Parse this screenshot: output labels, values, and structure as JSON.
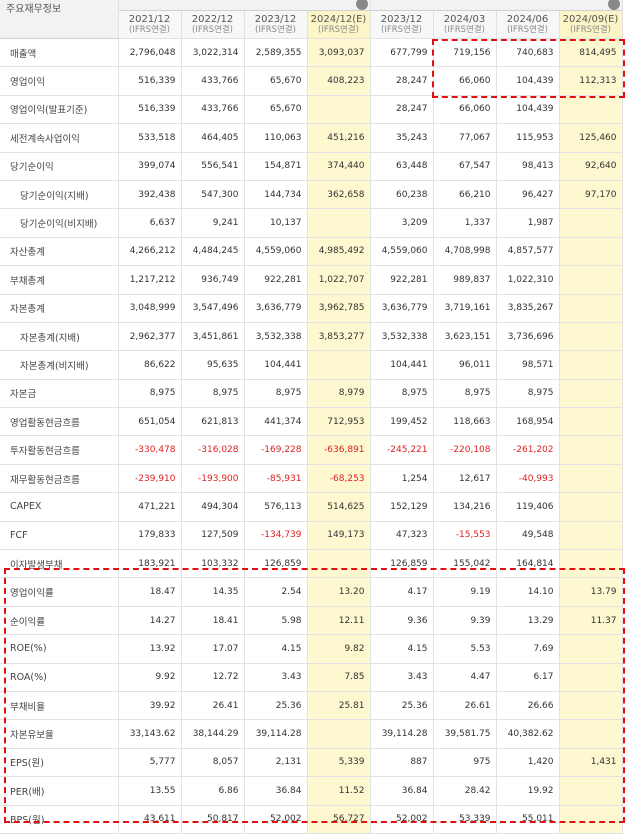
{
  "header": {
    "corner": "주요재무정보",
    "columns": [
      {
        "period": "2021/12",
        "basis": "(IFRS연결)"
      },
      {
        "period": "2022/12",
        "basis": "(IFRS연결)"
      },
      {
        "period": "2023/12",
        "basis": "(IFRS연결)"
      },
      {
        "period": "2024/12(E)",
        "basis": "(IFRS연결)"
      },
      {
        "period": "2023/12",
        "basis": "(IFRS연결)"
      },
      {
        "period": "2024/03",
        "basis": "(IFRS연결)"
      },
      {
        "period": "2024/06",
        "basis": "(IFRS연결)"
      },
      {
        "period": "2024/09(E)",
        "basis": "(IFRS연결)"
      }
    ]
  },
  "rows": [
    {
      "label": "매출액",
      "values": [
        "2,796,048",
        "3,022,314",
        "2,589,355",
        "3,093,037",
        "677,799",
        "719,156",
        "740,683",
        "814,495"
      ]
    },
    {
      "label": "영업이익",
      "values": [
        "516,339",
        "433,766",
        "65,670",
        "408,223",
        "28,247",
        "66,060",
        "104,439",
        "112,313"
      ]
    },
    {
      "label": "영업이익(발표기준)",
      "values": [
        "516,339",
        "433,766",
        "65,670",
        "",
        "28,247",
        "66,060",
        "104,439",
        ""
      ]
    },
    {
      "label": "세전계속사업이익",
      "values": [
        "533,518",
        "464,405",
        "110,063",
        "451,216",
        "35,243",
        "77,067",
        "115,953",
        "125,460"
      ]
    },
    {
      "label": "당기순이익",
      "values": [
        "399,074",
        "556,541",
        "154,871",
        "374,440",
        "63,448",
        "67,547",
        "98,413",
        "92,640"
      ]
    },
    {
      "label": "당기순이익(지배)",
      "values": [
        "392,438",
        "547,300",
        "144,734",
        "362,658",
        "60,238",
        "66,210",
        "96,427",
        "97,170"
      ]
    },
    {
      "label": "당기순이익(비지배)",
      "values": [
        "6,637",
        "9,241",
        "10,137",
        "",
        "3,209",
        "1,337",
        "1,987",
        ""
      ]
    },
    {
      "label": "자산총계",
      "values": [
        "4,266,212",
        "4,484,245",
        "4,559,060",
        "4,985,492",
        "4,559,060",
        "4,708,998",
        "4,857,577",
        ""
      ]
    },
    {
      "label": "부채총계",
      "values": [
        "1,217,212",
        "936,749",
        "922,281",
        "1,022,707",
        "922,281",
        "989,837",
        "1,022,310",
        ""
      ]
    },
    {
      "label": "자본총계",
      "values": [
        "3,048,999",
        "3,547,496",
        "3,636,779",
        "3,962,785",
        "3,636,779",
        "3,719,161",
        "3,835,267",
        ""
      ]
    },
    {
      "label": "자본총계(지배)",
      "values": [
        "2,962,377",
        "3,451,861",
        "3,532,338",
        "3,853,277",
        "3,532,338",
        "3,623,151",
        "3,736,696",
        ""
      ]
    },
    {
      "label": "자본총계(비지배)",
      "values": [
        "86,622",
        "95,635",
        "104,441",
        "",
        "104,441",
        "96,011",
        "98,571",
        ""
      ]
    },
    {
      "label": "자본금",
      "values": [
        "8,975",
        "8,975",
        "8,975",
        "8,979",
        "8,975",
        "8,975",
        "8,975",
        ""
      ]
    },
    {
      "label": "영업활동현금흐름",
      "values": [
        "651,054",
        "621,813",
        "441,374",
        "712,953",
        "199,452",
        "118,663",
        "168,954",
        ""
      ]
    },
    {
      "label": "투자활동현금흐름",
      "values": [
        "-330,478",
        "-316,028",
        "-169,228",
        "-636,891",
        "-245,221",
        "-220,108",
        "-261,202",
        ""
      ]
    },
    {
      "label": "재무활동현금흐름",
      "values": [
        "-239,910",
        "-193,900",
        "-85,931",
        "-68,253",
        "1,254",
        "12,617",
        "-40,993",
        ""
      ]
    },
    {
      "label": "CAPEX",
      "values": [
        "471,221",
        "494,304",
        "576,113",
        "514,625",
        "152,129",
        "134,216",
        "119,406",
        ""
      ]
    },
    {
      "label": "FCF",
      "values": [
        "179,833",
        "127,509",
        "-134,739",
        "149,173",
        "47,323",
        "-15,553",
        "49,548",
        ""
      ]
    },
    {
      "label": "이자발생부채",
      "values": [
        "183,921",
        "103,332",
        "126,859",
        "",
        "126,859",
        "155,042",
        "164,814",
        ""
      ]
    },
    {
      "label": "영업이익률",
      "values": [
        "18.47",
        "14.35",
        "2.54",
        "13.20",
        "4.17",
        "9.19",
        "14.10",
        "13.79"
      ]
    },
    {
      "label": "순이익률",
      "values": [
        "14.27",
        "18.41",
        "5.98",
        "12.11",
        "9.36",
        "9.39",
        "13.29",
        "11.37"
      ]
    },
    {
      "label": "ROE(%)",
      "values": [
        "13.92",
        "17.07",
        "4.15",
        "9.82",
        "4.15",
        "5.53",
        "7.69",
        ""
      ]
    },
    {
      "label": "ROA(%)",
      "values": [
        "9.92",
        "12.72",
        "3.43",
        "7.85",
        "3.43",
        "4.47",
        "6.17",
        ""
      ]
    },
    {
      "label": "부채비율",
      "values": [
        "39.92",
        "26.41",
        "25.36",
        "25.81",
        "25.36",
        "26.61",
        "26.66",
        ""
      ]
    },
    {
      "label": "자본유보율",
      "values": [
        "33,143.62",
        "38,144.29",
        "39,114.28",
        "",
        "39,114.28",
        "39,581.75",
        "40,382.62",
        ""
      ]
    },
    {
      "label": "EPS(원)",
      "values": [
        "5,777",
        "8,057",
        "2,131",
        "5,339",
        "887",
        "975",
        "1,420",
        "1,431"
      ]
    },
    {
      "label": "PER(배)",
      "values": [
        "13.55",
        "6.86",
        "36.84",
        "11.52",
        "36.84",
        "28.42",
        "19.92",
        ""
      ]
    },
    {
      "label": "BPS(원)",
      "values": [
        "43,611",
        "50,817",
        "52,002",
        "56,727",
        "52,002",
        "53,339",
        "55,011",
        ""
      ]
    }
  ],
  "colors": {
    "estimate_bg": "#fdf8d0",
    "negative": "#e02020",
    "highlight_border": "#e01010"
  }
}
